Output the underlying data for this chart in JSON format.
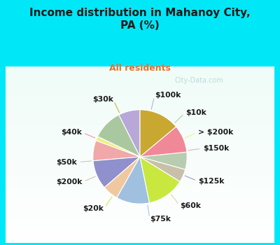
{
  "title": "Income distribution in Mahanoy City,\nPA (%)",
  "subtitle": "All residents",
  "title_color": "#1a1a1a",
  "subtitle_color": "#e87030",
  "cyan_bg": "#00e8f8",
  "pie_box_color": "#ffffff",
  "labels": [
    "$100k",
    "$10k",
    "> $200k",
    "$150k",
    "$125k",
    "$60k",
    "$75k",
    "$20k",
    "$200k",
    "$50k",
    "$40k",
    "$30k"
  ],
  "values": [
    7.5,
    10.5,
    1.5,
    7.0,
    10.0,
    5.5,
    11.5,
    13.0,
    4.5,
    6.0,
    9.5,
    14.0
  ],
  "colors": [
    "#b8a8d8",
    "#aac8a0",
    "#f0f080",
    "#f0a8a8",
    "#9090cc",
    "#f0c8a0",
    "#a0c0e0",
    "#c8e840",
    "#c8c0a8",
    "#b8ccb0",
    "#f08898",
    "#c8a830"
  ],
  "label_fontsize": 7.8,
  "label_color": "#1a1a1a",
  "startangle": 90,
  "watermark": "City-Data.com"
}
